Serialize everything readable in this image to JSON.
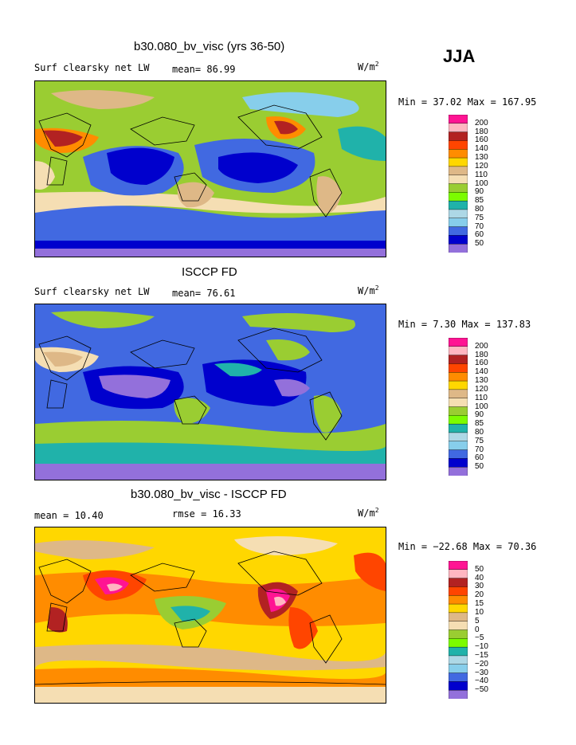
{
  "season": "JJA",
  "units_label": "W/m",
  "units_exp": "2",
  "panels": [
    {
      "title": "b30.080_bv_visc (yrs 36-50)",
      "left_label": "Surf clearsky net LW",
      "stat_label": "mean=  86.99",
      "minmax": "Min =   37.02 Max = 167.95",
      "levels": [
        "200",
        "180",
        "160",
        "140",
        "130",
        "120",
        "110",
        "100",
        "90",
        "85",
        "80",
        "75",
        "70",
        "60",
        "50"
      ],
      "colors": [
        "#ff1493",
        "#ffb6c1",
        "#b22222",
        "#ff4500",
        "#ff8c00",
        "#ffd700",
        "#deb887",
        "#f5deb3",
        "#9acd32",
        "#7cfc00",
        "#20b2aa",
        "#add8e6",
        "#87ceeb",
        "#4169e1",
        "#0000cd",
        "#9370db"
      ]
    },
    {
      "title": "ISCCP FD",
      "left_label": "Surf clearsky net LW",
      "stat_label": "mean=  76.61",
      "minmax": "Min =    7.30 Max = 137.83",
      "levels": [
        "200",
        "180",
        "160",
        "140",
        "130",
        "120",
        "110",
        "100",
        "90",
        "85",
        "80",
        "75",
        "70",
        "60",
        "50"
      ],
      "colors": [
        "#ff1493",
        "#ffb6c1",
        "#b22222",
        "#ff4500",
        "#ff8c00",
        "#ffd700",
        "#deb887",
        "#f5deb3",
        "#9acd32",
        "#7cfc00",
        "#20b2aa",
        "#add8e6",
        "#87ceeb",
        "#4169e1",
        "#0000cd",
        "#9370db"
      ]
    },
    {
      "title": "b30.080_bv_visc - ISCCP FD",
      "left_label": "mean =  10.40",
      "stat_label": "rmse =  16.33",
      "minmax": "Min = −22.68 Max =  70.36",
      "levels": [
        "50",
        "40",
        "30",
        "20",
        "15",
        "10",
        "5",
        "0",
        "−5",
        "−10",
        "−15",
        "−20",
        "−30",
        "−40",
        "−50"
      ],
      "colors": [
        "#ff1493",
        "#ffb6c1",
        "#b22222",
        "#ff4500",
        "#ff8c00",
        "#ffd700",
        "#deb887",
        "#f5deb3",
        "#9acd32",
        "#7cfc00",
        "#20b2aa",
        "#add8e6",
        "#87ceeb",
        "#4169e1",
        "#0000cd",
        "#9370db"
      ]
    }
  ],
  "chart_data": [
    {
      "type": "heatmap",
      "title": "b30.080_bv_visc (yrs 36-50)",
      "variable": "Surf clearsky net LW",
      "units": "W/m2",
      "mean": 86.99,
      "min": 37.02,
      "max": 167.95,
      "contour_levels": [
        50,
        60,
        70,
        75,
        80,
        85,
        90,
        100,
        110,
        120,
        130,
        140,
        160,
        180,
        200
      ]
    },
    {
      "type": "heatmap",
      "title": "ISCCP FD",
      "variable": "Surf clearsky net LW",
      "units": "W/m2",
      "mean": 76.61,
      "min": 7.3,
      "max": 137.83,
      "contour_levels": [
        50,
        60,
        70,
        75,
        80,
        85,
        90,
        100,
        110,
        120,
        130,
        140,
        160,
        180,
        200
      ]
    },
    {
      "type": "heatmap",
      "title": "b30.080_bv_visc - ISCCP FD",
      "units": "W/m2",
      "mean": 10.4,
      "rmse": 16.33,
      "min": -22.68,
      "max": 70.36,
      "contour_levels": [
        -50,
        -40,
        -30,
        -20,
        -15,
        -10,
        -5,
        0,
        5,
        10,
        15,
        20,
        30,
        40,
        50
      ]
    }
  ]
}
